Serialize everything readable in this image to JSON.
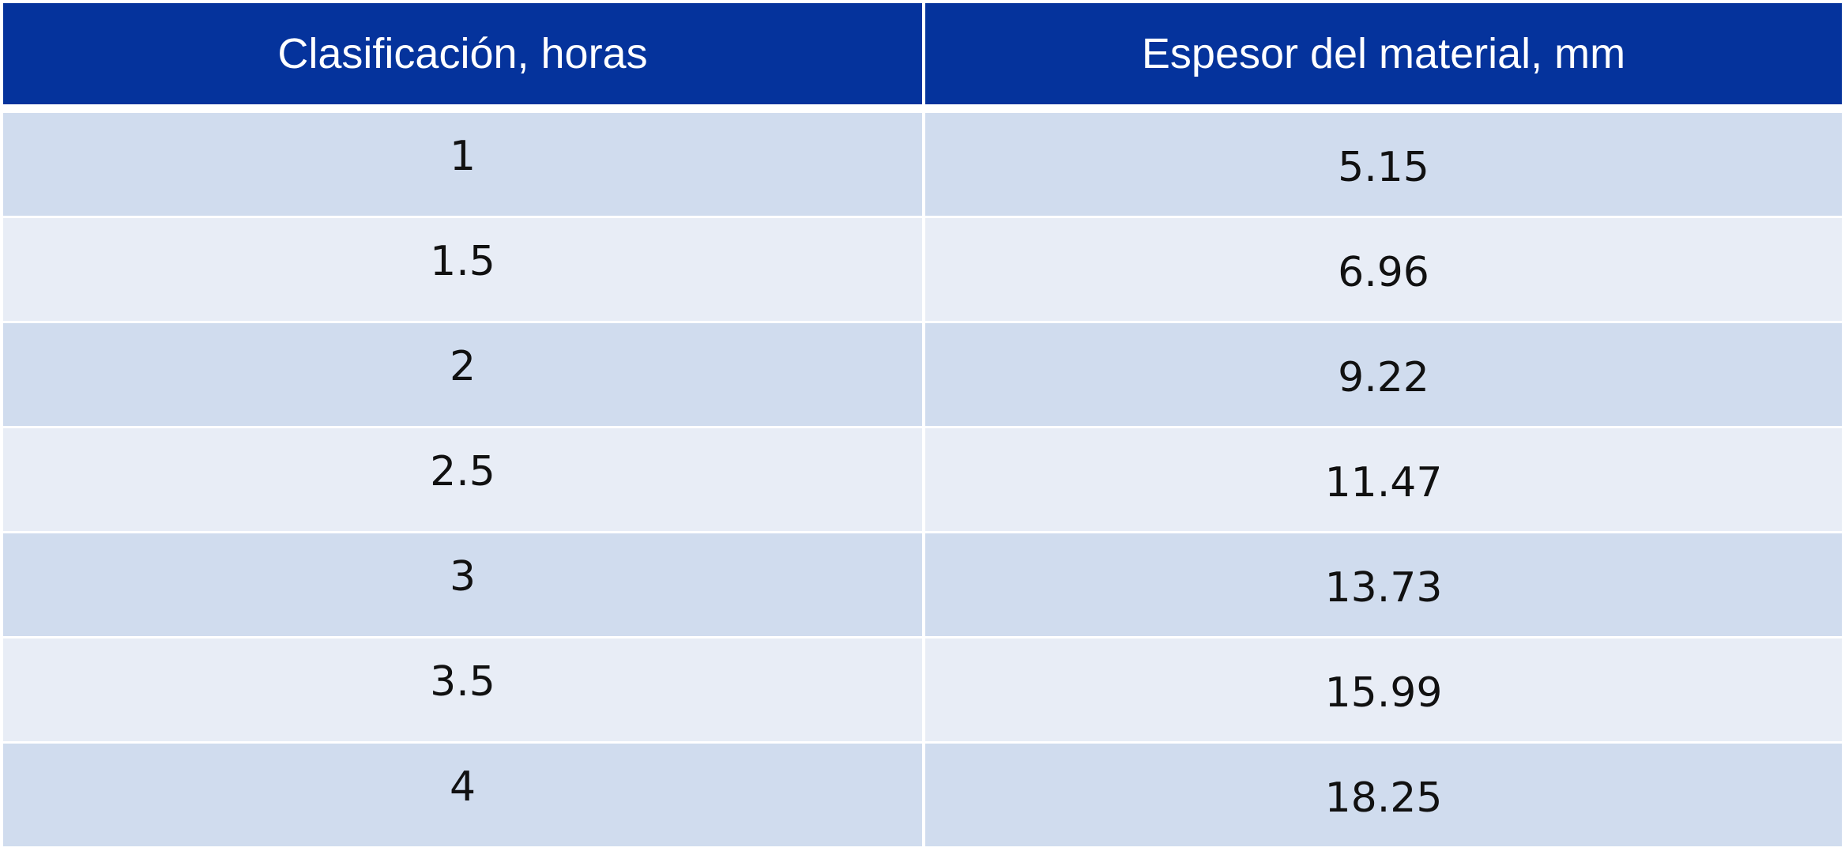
{
  "table": {
    "header": [
      "Clasificación, horas",
      "Espesor del material, mm"
    ],
    "rows": [
      [
        "1",
        "5.15"
      ],
      [
        "1.5",
        "6.96"
      ],
      [
        "2",
        "9.22"
      ],
      [
        "2.5",
        "11.47"
      ],
      [
        "3",
        "13.73"
      ],
      [
        "3.5",
        "15.99"
      ],
      [
        "4",
        "18.25"
      ]
    ]
  }
}
